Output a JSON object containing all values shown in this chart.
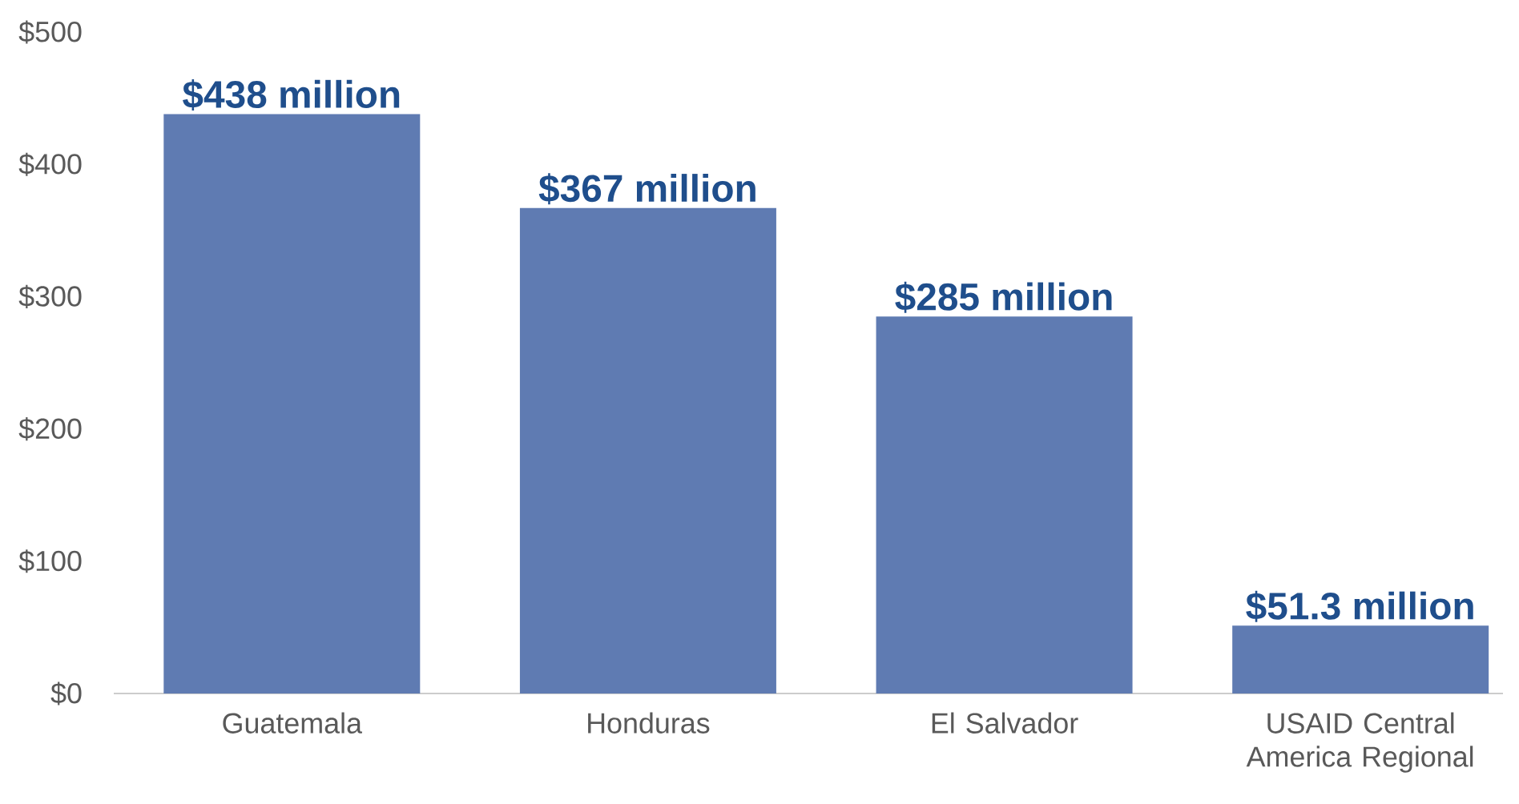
{
  "chart_data": {
    "type": "bar",
    "categories": [
      "Guatemala",
      "Honduras",
      "El Salvador",
      "USAID Central America Regional"
    ],
    "values": [
      438,
      367,
      285,
      51.3
    ],
    "value_labels": [
      "$438 million",
      "$367 million",
      "$285 million",
      "$51.3 million"
    ],
    "color": "#5f7bb2",
    "yticks": [
      {
        "value": 0,
        "label": "$0"
      },
      {
        "value": 100,
        "label": "$100"
      },
      {
        "value": 200,
        "label": "$200"
      },
      {
        "value": 300,
        "label": "$300"
      },
      {
        "value": 400,
        "label": "$400"
      },
      {
        "value": 500,
        "label": "$500"
      }
    ],
    "ylim": [
      0,
      500
    ]
  }
}
